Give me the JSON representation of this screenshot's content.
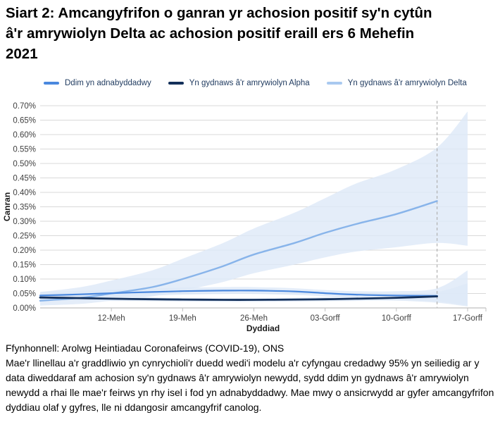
{
  "title": "Siart 2: Amcangyfrifon o ganran yr achosion positif sy'n cytûn â'r amrywiolyn Delta ac achosion positif eraill ers 6 Mehefin 2021",
  "legend": [
    {
      "label": "Ddim yn adnabyddadwy",
      "color": "#4a88de"
    },
    {
      "label": "Yn gydnaws â'r amrywiolyn Alpha",
      "color": "#14305a"
    },
    {
      "label": "Yn gydnaws â'r amrywiolyn Delta",
      "color": "#a9c9f0"
    }
  ],
  "source": "Ffynhonnell: Arolwg Heintiadau Coronafeirws (COVID-19), ONS",
  "note": "Mae'r llinellau a'r graddliwio yn cynrychioli'r duedd wedi'i modelu a'r cyfyngau credadwy 95% yn seiliedig ar y data diweddaraf am achosion sy'n gydnaws â'r amrywiolyn newydd, sydd ddim yn gydnaws â'r amrywiolyn newydd a rhai lle mae'r feirws yn rhy isel i fod yn adnabyddadwy. Mae mwy o ansicrwydd ar gyfer amcangyfrifon dyddiau olaf y gyfres, lle ni ddangosir amcangyfrif canolog.",
  "chart_data": {
    "type": "line",
    "title": "Siart 2: Amcangyfrifon o ganran yr achosion positif sy'n cytûn â'r amrywiolyn Delta ac achosion positif eraill ers 6 Mehefin 2021",
    "xlabel": "Dyddiad",
    "ylabel": "Canran",
    "ylim": [
      0,
      0.7
    ],
    "ytick_step": 0.05,
    "ytick_suffix": "%",
    "grid": true,
    "legend_position": "top",
    "x_unit_day0": "06 Mehefin 2021",
    "x_domain_days": [
      -1,
      42.8
    ],
    "xticks": [
      {
        "day": 6,
        "label": "12-Meh"
      },
      {
        "day": 13,
        "label": "19-Meh"
      },
      {
        "day": 20,
        "label": "26-Meh"
      },
      {
        "day": 27,
        "label": "03-Gorff"
      },
      {
        "day": 34,
        "label": "10-Gorff"
      },
      {
        "day": 41,
        "label": "17-Gorff"
      }
    ],
    "central_estimate_end_day": 38,
    "band_color": "#dde9f8",
    "grid_color": "#d9d9d9",
    "axis_color": "#c0c0c0",
    "dashed_line_color": "#b0b0b0",
    "series": [
      {
        "name": "Yn gydnaws â'r amrywiolyn Delta",
        "color": "#88b4ea",
        "width": 2.4,
        "x": [
          -1,
          3,
          6,
          10,
          13,
          17,
          20,
          24,
          27,
          30,
          34,
          38
        ],
        "y": [
          0.025,
          0.035,
          0.05,
          0.072,
          0.1,
          0.145,
          0.185,
          0.225,
          0.26,
          0.29,
          0.325,
          0.37
        ],
        "band": {
          "x": [
            -1,
            3,
            6,
            10,
            13,
            17,
            20,
            24,
            27,
            30,
            34,
            38,
            41
          ],
          "upper": [
            0.055,
            0.072,
            0.095,
            0.13,
            0.17,
            0.225,
            0.275,
            0.33,
            0.38,
            0.43,
            0.48,
            0.555,
            0.68
          ],
          "lower": [
            0.008,
            0.014,
            0.025,
            0.04,
            0.06,
            0.09,
            0.12,
            0.15,
            0.175,
            0.195,
            0.21,
            0.225,
            0.215
          ]
        }
      },
      {
        "name": "Ddim yn adnabyddadwy",
        "color": "#4a88de",
        "width": 2.2,
        "x": [
          -1,
          3,
          6,
          10,
          13,
          17,
          20,
          24,
          27,
          30,
          34,
          38
        ],
        "y": [
          0.043,
          0.047,
          0.051,
          0.055,
          0.058,
          0.06,
          0.06,
          0.057,
          0.051,
          0.046,
          0.043,
          0.042
        ],
        "band": {
          "x": [
            -1,
            3,
            6,
            10,
            13,
            17,
            20,
            24,
            27,
            30,
            34,
            38,
            41
          ],
          "upper": [
            0.055,
            0.059,
            0.063,
            0.067,
            0.07,
            0.072,
            0.072,
            0.068,
            0.062,
            0.058,
            0.058,
            0.068,
            0.13
          ],
          "lower": [
            0.031,
            0.035,
            0.039,
            0.043,
            0.046,
            0.048,
            0.048,
            0.045,
            0.04,
            0.034,
            0.028,
            0.022,
            0.008
          ]
        }
      },
      {
        "name": "Yn gydnaws â'r amrywiolyn Alpha",
        "color": "#14305a",
        "width": 2.8,
        "x": [
          -1,
          3,
          6,
          10,
          13,
          17,
          20,
          24,
          27,
          30,
          34,
          38
        ],
        "y": [
          0.036,
          0.034,
          0.032,
          0.03,
          0.029,
          0.028,
          0.028,
          0.029,
          0.03,
          0.032,
          0.035,
          0.04
        ],
        "band": {
          "x": [
            -1,
            3,
            6,
            10,
            13,
            17,
            20,
            24,
            27,
            30,
            34,
            38,
            41
          ],
          "upper": [
            0.045,
            0.042,
            0.039,
            0.036,
            0.034,
            0.033,
            0.033,
            0.035,
            0.037,
            0.04,
            0.045,
            0.055,
            0.085
          ],
          "lower": [
            0.026,
            0.025,
            0.024,
            0.023,
            0.022,
            0.021,
            0.021,
            0.022,
            0.023,
            0.024,
            0.025,
            0.018,
            0.005
          ]
        }
      }
    ]
  }
}
